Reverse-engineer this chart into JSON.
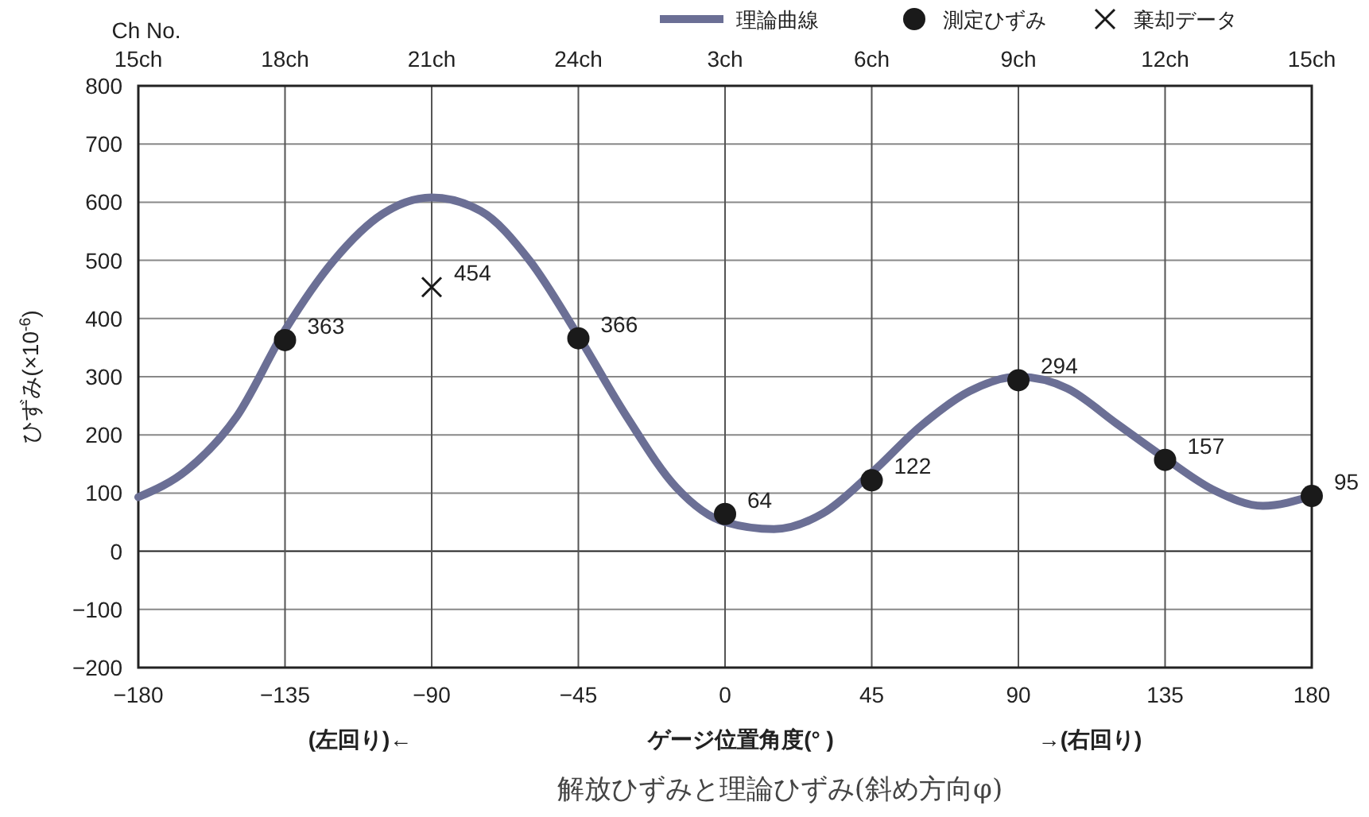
{
  "chart_data": {
    "type": "line",
    "title": "解放ひずみと理論ひずみ(斜め方向φ)",
    "xlabel": "ゲージ位置角度(°  )",
    "ylabel": "ひずみ(×10$^{-6}$)",
    "annotations": [
      "(左回り)←",
      "→(右回り)",
      "Ch No.",
      "15ch",
      "18ch",
      "21ch",
      "24ch",
      "3ch",
      "6ch",
      "9ch",
      "12ch",
      "15ch"
    ],
    "xlim": [
      -180,
      180
    ],
    "xticks": [
      -180,
      -135,
      -90,
      -45,
      0,
      45,
      90,
      135,
      180
    ],
    "ylim": [
      -200,
      800
    ],
    "yticks": [
      -200,
      -100,
      0,
      100,
      200,
      300,
      400,
      500,
      600,
      700,
      800
    ],
    "grid": true,
    "legend": "top right",
    "series": [
      {
        "name": "理論曲線",
        "color": "#6b6f95",
        "x": [
          -180,
          -165,
          -150,
          -135,
          -120,
          -105,
          -90,
          -75,
          -60,
          -45,
          -30,
          -15,
          0,
          15,
          30,
          45,
          60,
          75,
          90,
          105,
          120,
          135,
          150,
          165,
          180
        ],
        "values": [
          93,
          140,
          230,
          380,
          500,
          580,
          608,
          585,
          500,
          370,
          230,
          110,
          50,
          38,
          65,
          135,
          215,
          275,
          300,
          280,
          220,
          160,
          105,
          78,
          95
        ]
      },
      {
        "name": "測定ひずみ",
        "type": "scatter",
        "color": "#1a1a1a",
        "marker": "circle",
        "x": [
          -135,
          -45,
          0,
          45,
          90,
          135,
          180
        ],
        "values": [
          363,
          366,
          64,
          122,
          294,
          157,
          95
        ],
        "value_labels": [
          "363",
          "366",
          "64",
          "122",
          "294",
          "157",
          "95"
        ]
      },
      {
        "name": "棄却データ",
        "type": "scatter",
        "color": "#1a1a1a",
        "marker": "cross",
        "x": [
          -90
        ],
        "values": [
          454
        ],
        "value_labels": [
          "454"
        ]
      }
    ]
  }
}
